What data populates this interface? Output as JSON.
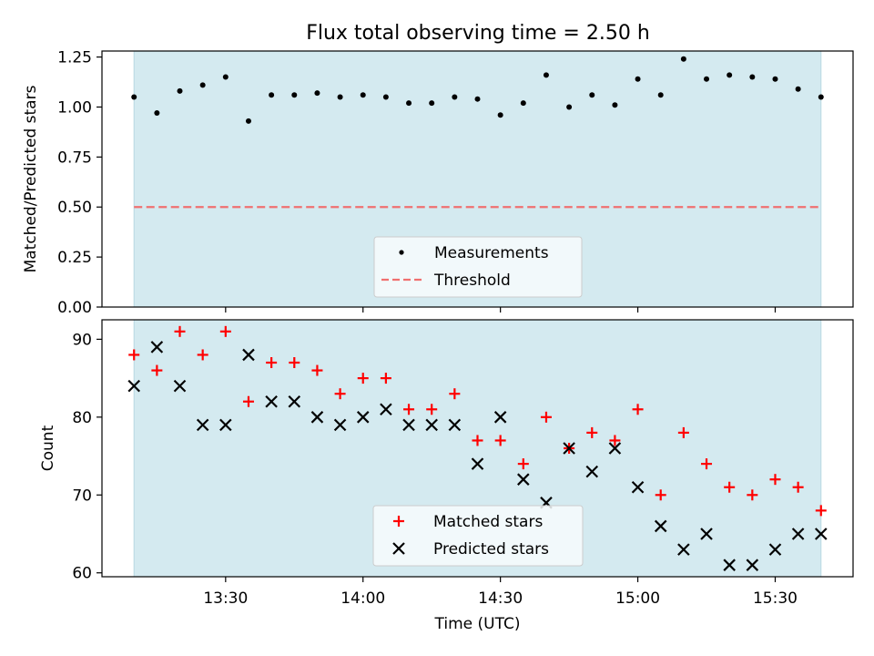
{
  "title": "Flux total observing time = 2.50 h",
  "colors": {
    "band": "#d4eaf0",
    "band_edge": "#b8d8e2",
    "measurement": "#000000",
    "threshold": "#f07070",
    "matched": "#ff0000",
    "predicted": "#000000"
  },
  "chart_data": [
    {
      "type": "scatter",
      "panel": "top",
      "ylabel": "Matched/Predicted stars",
      "ylim": [
        0,
        1.28
      ],
      "yticks": [
        0.0,
        0.25,
        0.5,
        0.75,
        1.0,
        1.25
      ],
      "ytick_labels": [
        "0.00",
        "0.25",
        "0.50",
        "0.75",
        "1.00",
        "1.25"
      ],
      "xlim": [
        "13:03",
        "15:47"
      ],
      "xticks": [
        "13:30",
        "14:00",
        "14:30",
        "15:00",
        "15:30"
      ],
      "observing_window": [
        "13:10",
        "15:40"
      ],
      "legend": "bottom-center",
      "series": [
        {
          "name": "Measurements",
          "marker": "dot",
          "x": [
            "13:10",
            "13:15",
            "13:20",
            "13:25",
            "13:30",
            "13:35",
            "13:40",
            "13:45",
            "13:50",
            "13:55",
            "14:00",
            "14:05",
            "14:10",
            "14:15",
            "14:20",
            "14:25",
            "14:30",
            "14:35",
            "14:40",
            "14:45",
            "14:50",
            "14:55",
            "15:00",
            "15:05",
            "15:10",
            "15:15",
            "15:20",
            "15:25",
            "15:30",
            "15:35",
            "15:40"
          ],
          "y": [
            1.05,
            0.97,
            1.08,
            1.11,
            1.15,
            0.93,
            1.06,
            1.06,
            1.07,
            1.05,
            1.06,
            1.05,
            1.02,
            1.02,
            1.05,
            1.04,
            0.96,
            1.02,
            1.16,
            1.0,
            1.06,
            1.01,
            1.14,
            1.06,
            1.24,
            1.14,
            1.16,
            1.15,
            1.14,
            1.09,
            1.05
          ]
        },
        {
          "name": "Threshold",
          "marker": "dashed-line",
          "y_value": 0.5
        }
      ]
    },
    {
      "type": "scatter",
      "panel": "bottom",
      "ylabel": "Count",
      "xlabel": "Time (UTC)",
      "ylim": [
        59.5,
        92.5
      ],
      "yticks": [
        60,
        70,
        80,
        90
      ],
      "ytick_labels": [
        "60",
        "70",
        "80",
        "90"
      ],
      "xlim": [
        "13:03",
        "15:47"
      ],
      "xticks": [
        "13:30",
        "14:00",
        "14:30",
        "15:00",
        "15:30"
      ],
      "observing_window": [
        "13:10",
        "15:40"
      ],
      "legend": "bottom-center",
      "series": [
        {
          "name": "Matched stars",
          "marker": "plus",
          "x": [
            "13:10",
            "13:15",
            "13:20",
            "13:25",
            "13:30",
            "13:35",
            "13:40",
            "13:45",
            "13:50",
            "13:55",
            "14:00",
            "14:05",
            "14:10",
            "14:15",
            "14:20",
            "14:25",
            "14:30",
            "14:35",
            "14:40",
            "14:45",
            "14:50",
            "14:55",
            "15:00",
            "15:05",
            "15:10",
            "15:15",
            "15:20",
            "15:25",
            "15:30",
            "15:35",
            "15:40"
          ],
          "y": [
            88,
            86,
            91,
            88,
            91,
            82,
            87,
            87,
            86,
            83,
            85,
            85,
            81,
            81,
            83,
            77,
            77,
            74,
            80,
            76,
            78,
            77,
            81,
            70,
            78,
            74,
            71,
            70,
            72,
            71,
            68
          ]
        },
        {
          "name": "Predicted stars",
          "marker": "x",
          "x": [
            "13:10",
            "13:15",
            "13:20",
            "13:25",
            "13:30",
            "13:35",
            "13:40",
            "13:45",
            "13:50",
            "13:55",
            "14:00",
            "14:05",
            "14:10",
            "14:15",
            "14:20",
            "14:25",
            "14:30",
            "14:35",
            "14:40",
            "14:45",
            "14:50",
            "14:55",
            "15:00",
            "15:05",
            "15:10",
            "15:15",
            "15:20",
            "15:25",
            "15:30",
            "15:35",
            "15:40"
          ],
          "y": [
            84,
            89,
            84,
            79,
            79,
            88,
            82,
            82,
            80,
            79,
            80,
            81,
            79,
            79,
            79,
            74,
            80,
            72,
            69,
            76,
            73,
            76,
            71,
            66,
            63,
            65,
            61,
            61,
            63,
            65,
            65
          ]
        }
      ]
    }
  ]
}
